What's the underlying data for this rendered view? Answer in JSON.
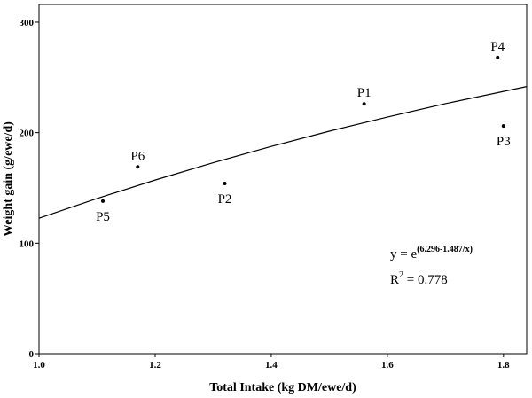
{
  "chart_data": {
    "type": "scatter",
    "x_label": "Total Intake (kg DM/ewe/d)",
    "y_label": "Weight gain (g/ewe/d)",
    "xlim": [
      1.0,
      1.84
    ],
    "ylim": [
      0,
      316
    ],
    "xticks": [
      {
        "value": 1.0,
        "label": "1.0"
      },
      {
        "value": 1.2,
        "label": "1.2"
      },
      {
        "value": 1.4,
        "label": "1.4"
      },
      {
        "value": 1.6,
        "label": "1.6"
      },
      {
        "value": 1.8,
        "label": "1.8"
      }
    ],
    "yticks": [
      0,
      100,
      200,
      300
    ],
    "points": {
      "color": "#000000",
      "labels": [
        "P1",
        "P2",
        "P3",
        "P4",
        "P5",
        "P6"
      ],
      "x": [
        1.56,
        1.32,
        1.8,
        1.79,
        1.11,
        1.17
      ],
      "values": [
        226,
        154,
        206,
        268,
        138,
        169
      ]
    },
    "fit": {
      "color": "#000000",
      "x": [
        1.0,
        1.1,
        1.2,
        1.3,
        1.4,
        1.5,
        1.6,
        1.7,
        1.84
      ],
      "values": [
        122.6,
        140.4,
        157.1,
        172.8,
        187.5,
        201.3,
        214.1,
        226.2,
        241.7
      ]
    },
    "equation": {
      "base": "y = e",
      "exponent": "(6.296-1.487/x)"
    },
    "r_squared": {
      "base": "R",
      "exponent": "2",
      "rest": " = 0.778"
    }
  }
}
